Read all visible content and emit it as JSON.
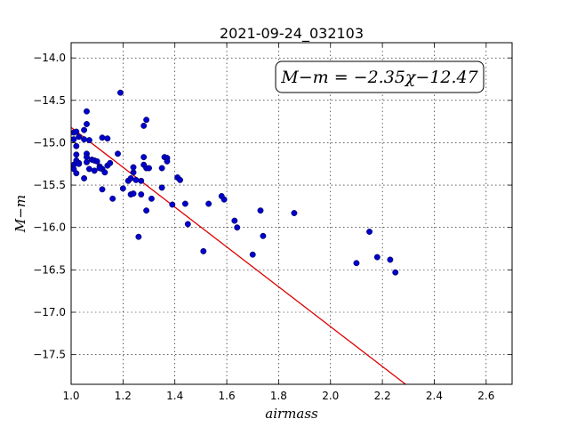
{
  "chart_data": {
    "type": "scatter",
    "title": "2021-09-24_032103",
    "xlabel": "airmass",
    "ylabel": "M−m",
    "xlim": [
      1.0,
      2.7
    ],
    "ylim": [
      -17.85,
      -13.82
    ],
    "y_inverted": true,
    "grid": true,
    "x_ticks": [
      "1.0",
      "1.2",
      "1.4",
      "1.6",
      "1.8",
      "2.0",
      "2.2",
      "2.4",
      "2.6"
    ],
    "y_ticks": [
      "−14.0",
      "−14.5",
      "−15.0",
      "−15.5",
      "−16.0",
      "−16.5",
      "−17.0",
      "−17.5"
    ],
    "annotation": "M−m = −2.35χ−12.47",
    "fit": {
      "slope": -2.35,
      "intercept": -12.47,
      "color": "#dd0000"
    },
    "point_color": "#0000cc",
    "x": [
      1.01,
      1.01,
      1.02,
      1.03,
      1.05,
      1.06,
      1.06,
      1.02,
      1.05,
      1.07,
      1.03,
      1.01,
      1.02,
      1.02,
      1.03,
      1.06,
      1.06,
      1.08,
      1.09,
      1.1,
      1.11,
      1.12,
      1.13,
      1.14,
      1.15,
      1.12,
      1.14,
      1.12,
      1.11,
      1.07,
      1.09,
      1.06,
      1.05,
      1.02,
      1.01,
      1.19,
      1.18,
      1.2,
      1.22,
      1.23,
      1.24,
      1.24,
      1.25,
      1.23,
      1.16,
      1.24,
      1.27,
      1.29,
      1.28,
      1.28,
      1.28,
      1.29,
      1.3,
      1.29,
      1.31,
      1.26,
      1.27,
      1.35,
      1.36,
      1.37,
      1.37,
      1.35,
      1.41,
      1.42,
      1.44,
      1.39,
      1.45,
      1.53,
      1.58,
      1.59,
      1.51,
      1.63,
      1.64,
      1.73,
      1.74,
      1.7,
      1.86,
      2.15,
      2.1,
      2.18,
      2.23,
      2.25
    ],
    "y": [
      -14.88,
      -14.96,
      -14.87,
      -14.93,
      -14.85,
      -14.78,
      -14.63,
      -15.04,
      -14.96,
      -14.97,
      -15.24,
      -15.26,
      -15.14,
      -15.21,
      -15.25,
      -15.13,
      -15.17,
      -15.2,
      -15.21,
      -15.22,
      -15.28,
      -15.31,
      -15.35,
      -15.27,
      -15.24,
      -15.55,
      -14.95,
      -14.94,
      -15.3,
      -15.31,
      -15.33,
      -15.23,
      -15.42,
      -15.36,
      -15.31,
      -14.41,
      -15.13,
      -15.54,
      -15.45,
      -15.42,
      -15.35,
      -15.29,
      -15.44,
      -15.61,
      -15.66,
      -15.6,
      -15.61,
      -14.73,
      -14.8,
      -15.17,
      -15.26,
      -15.3,
      -15.3,
      -15.8,
      -15.66,
      -16.11,
      -15.45,
      -15.3,
      -15.17,
      -15.18,
      -15.22,
      -15.53,
      -15.41,
      -15.44,
      -15.72,
      -15.73,
      -15.96,
      -15.72,
      -15.63,
      -15.67,
      -16.28,
      -15.92,
      -16.0,
      -15.8,
      -16.1,
      -16.32,
      -15.83,
      -16.05,
      -16.42,
      -16.35,
      -16.38,
      -16.53
    ]
  }
}
